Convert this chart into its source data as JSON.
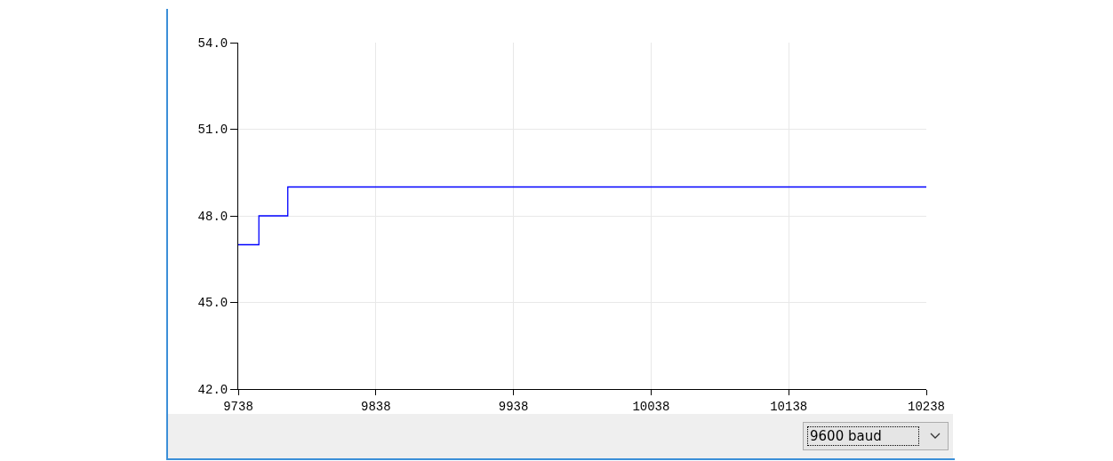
{
  "chart_data": {
    "type": "step",
    "x": [
      9738,
      9753,
      9774,
      10238
    ],
    "series": [
      {
        "color": "#0000ff",
        "values": [
          47,
          48,
          49,
          49
        ]
      }
    ],
    "xlim": [
      9738,
      10238
    ],
    "xticks": [
      9738,
      9838,
      9938,
      10038,
      10138,
      10238
    ],
    "ylim": [
      42,
      54
    ],
    "yticks": [
      {
        "value": 42,
        "label": "42.0"
      },
      {
        "value": 45,
        "label": "45.0"
      },
      {
        "value": 48,
        "label": "48.0"
      },
      {
        "value": 51,
        "label": "51.0"
      },
      {
        "value": 54,
        "label": "54.0"
      }
    ],
    "grid": true,
    "marker": "none",
    "line_style": "solid",
    "annotations": [
      "9600 baud"
    ]
  }
}
